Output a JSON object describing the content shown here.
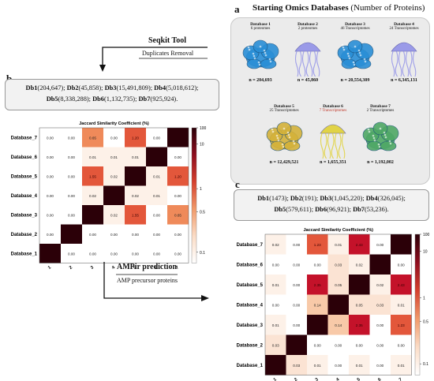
{
  "panel_a": {
    "letter": "a",
    "title": "Starting Omics Databases",
    "title_note": "(Number of Proteins)",
    "databases": [
      {
        "name": "Database 1",
        "type": "6 proteomes",
        "n": "n = 204,693",
        "organism": "coral",
        "color": "#2a8fd6"
      },
      {
        "name": "Database 2",
        "type": "2 proteomes",
        "n": "n = 45,860",
        "organism": "jellyfish",
        "color": "#8d8de8"
      },
      {
        "name": "Database 3",
        "type": "46 Transcriptomes",
        "n": "n = 20,554,309",
        "organism": "coral",
        "color": "#2a8fd6"
      },
      {
        "name": "Database 4",
        "type": "24 Transcriptomes",
        "n": "n = 6,345,131",
        "organism": "jellyfish",
        "color": "#8d8de8"
      },
      {
        "name": "Database 5",
        "type": "25 Transcriptomes",
        "n": "n = 12,429,521",
        "organism": "coral",
        "color": "#d4b23a"
      },
      {
        "name": "Database 6",
        "type": "7 Transcriptomes",
        "n": "n = 1,655,351",
        "organism": "jellyfish",
        "color": "#e0cf2a"
      },
      {
        "name": "Database 7",
        "type": "2 Transcriptomes",
        "n": "n = 1,192,002",
        "organism": "coral",
        "color": "#4fa866"
      }
    ]
  },
  "seqkit": {
    "title": "Seqkit Tool",
    "subtitle": "Duplicates Removal"
  },
  "ampir": {
    "title": "AMPir prediction",
    "subtitle": "AMP precursor proteins"
  },
  "panel_b": {
    "letter": "b",
    "line1": [
      {
        "k": "Db1",
        "v": "(204,647); "
      },
      {
        "k": "Db2",
        "v": "(45,858); "
      },
      {
        "k": "Db3",
        "v": "(15,491,809); "
      },
      {
        "k": "Db4",
        "v": "(5,018,612);"
      }
    ],
    "line2": [
      {
        "k": "Db5",
        "v": "(8,338,288); "
      },
      {
        "k": "Db6",
        "v": "(1,132,735); "
      },
      {
        "k": "Db7",
        "v": "(925,924)."
      }
    ]
  },
  "panel_c": {
    "letter": "c",
    "line1": [
      {
        "k": "Db1",
        "v": "(1473); "
      },
      {
        "k": "Db2",
        "v": "(191); "
      },
      {
        "k": "Db3",
        "v": "(1,045,220); "
      },
      {
        "k": "Db4",
        "v": "(326,045);"
      }
    ],
    "line2": [
      {
        "k": "Db5",
        "v": "(579,611); "
      },
      {
        "k": "Db6",
        "v": "(96,921); "
      },
      {
        "k": "Db7",
        "v": "(53,236)."
      }
    ]
  },
  "chart_data": [
    {
      "type": "heatmap",
      "title": "Jaccard Similarity Coefficient (%)",
      "rows": [
        "Database_7",
        "Database_6",
        "Database_5",
        "Database_4",
        "Database_3",
        "Database_2",
        "Database_1"
      ],
      "cols": [
        "1",
        "2",
        "3",
        "4",
        "5",
        "6",
        "7"
      ],
      "values": [
        [
          "0.00",
          "0.00",
          "0.65",
          "0.00",
          "1.20",
          "0.00",
          ""
        ],
        [
          "0.00",
          "0.00",
          "0.01",
          "0.01",
          "0.01",
          "",
          "0.00"
        ],
        [
          "0.00",
          "0.00",
          "1.55",
          "0.02",
          "",
          "0.01",
          "1.20"
        ],
        [
          "0.00",
          "0.00",
          "0.02",
          "",
          "0.02",
          "0.01",
          "0.00"
        ],
        [
          "0.00",
          "0.00",
          "",
          "0.02",
          "1.55",
          "0.00",
          "0.65"
        ],
        [
          "0.00",
          "",
          "0.00",
          "0.00",
          "0.00",
          "0.00",
          "0.00"
        ],
        [
          "",
          "0.00",
          "0.00",
          "0.00",
          "0.00",
          "0.00",
          "0.00"
        ]
      ],
      "colorbar_ticks": [
        "100",
        "10",
        "1",
        "0.5",
        "0.1"
      ],
      "scale": "log"
    },
    {
      "type": "heatmap",
      "title": "Jaccard Similarity Coefficient (%)",
      "rows": [
        "Database_7",
        "Database_6",
        "Database_5",
        "Database_4",
        "Database_3",
        "Database_2",
        "Database_1"
      ],
      "cols": [
        "1",
        "2",
        "3",
        "4",
        "5",
        "6",
        "7"
      ],
      "values": [
        [
          "0.02",
          "0.00",
          "1.23",
          "0.01",
          "2.43",
          "0.00",
          ""
        ],
        [
          "0.00",
          "0.00",
          "0.00",
          "0.03",
          "0.02",
          "",
          "0.00"
        ],
        [
          "0.01",
          "0.00",
          "2.35",
          "0.05",
          "",
          "0.02",
          "2.43"
        ],
        [
          "0.00",
          "0.00",
          "0.14",
          "",
          "0.05",
          "0.03",
          "0.01"
        ],
        [
          "0.01",
          "0.00",
          "",
          "0.14",
          "2.35",
          "0.00",
          "1.23"
        ],
        [
          "0.03",
          "",
          "0.00",
          "0.00",
          "0.00",
          "0.00",
          "0.00"
        ],
        [
          "",
          "0.03",
          "0.01",
          "0.00",
          "0.01",
          "0.00",
          "0.01"
        ]
      ],
      "colorbar_ticks": [
        "100",
        "10",
        "1",
        "0.5",
        "0.1"
      ],
      "scale": "log"
    }
  ]
}
